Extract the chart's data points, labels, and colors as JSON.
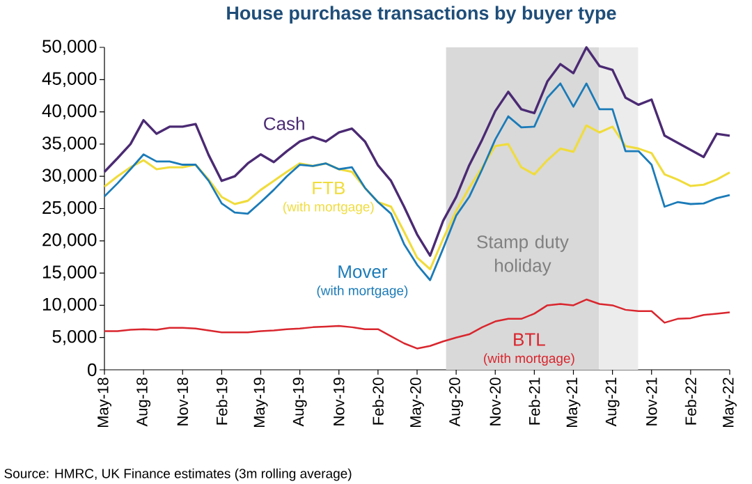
{
  "chart_data": {
    "type": "line",
    "title": "House purchase transactions by buyer type",
    "x": [
      "2018-05",
      "2018-06",
      "2018-07",
      "2018-08",
      "2018-09",
      "2018-10",
      "2018-11",
      "2018-12",
      "2019-01",
      "2019-02",
      "2019-03",
      "2019-04",
      "2019-05",
      "2019-06",
      "2019-07",
      "2019-08",
      "2019-09",
      "2019-10",
      "2019-11",
      "2019-12",
      "2020-01",
      "2020-02",
      "2020-03",
      "2020-04",
      "2020-05",
      "2020-06",
      "2020-07",
      "2020-08",
      "2020-09",
      "2020-10",
      "2020-11",
      "2020-12",
      "2021-01",
      "2021-02",
      "2021-03",
      "2021-04",
      "2021-05",
      "2021-06",
      "2021-07",
      "2021-08",
      "2021-09",
      "2021-10",
      "2021-11",
      "2021-12",
      "2022-01",
      "2022-02",
      "2022-03",
      "2022-04",
      "2022-05"
    ],
    "series": [
      {
        "name": "Cash",
        "color": "#4b2a73",
        "values": [
          30700,
          32800,
          35000,
          38700,
          36600,
          37700,
          37700,
          38100,
          33300,
          29300,
          30000,
          32000,
          33400,
          32200,
          33900,
          35400,
          36100,
          35400,
          36800,
          37400,
          35400,
          31700,
          29300,
          25300,
          21000,
          17700,
          23100,
          26800,
          31700,
          35700,
          40100,
          43100,
          40400,
          39800,
          44700,
          47400,
          46000,
          50000,
          47100,
          46500,
          42200,
          41100,
          41900,
          36300,
          35200,
          34100,
          33000,
          36600,
          36300
        ]
      },
      {
        "name": "FTB",
        "color": "#f0dc3c",
        "values": [
          28400,
          30000,
          31400,
          32500,
          31100,
          31400,
          31400,
          31800,
          29500,
          26800,
          25700,
          26200,
          27900,
          29300,
          30700,
          32000,
          31600,
          32000,
          31100,
          30700,
          28200,
          26000,
          25300,
          21400,
          17400,
          15600,
          20300,
          24600,
          28200,
          31400,
          34700,
          35000,
          31400,
          30300,
          32500,
          34300,
          33800,
          37900,
          36800,
          37700,
          34700,
          34300,
          33600,
          30300,
          29500,
          28500,
          28700,
          29500,
          30600
        ]
      },
      {
        "name": "Mover",
        "color": "#1b7bb8",
        "values": [
          26900,
          28900,
          31100,
          33400,
          32300,
          32300,
          31800,
          31800,
          29300,
          25800,
          24400,
          24200,
          26000,
          27900,
          30000,
          31800,
          31600,
          32000,
          31100,
          31400,
          28200,
          26000,
          24200,
          19500,
          16300,
          13900,
          18800,
          23900,
          26800,
          31100,
          35700,
          39300,
          37600,
          37700,
          42200,
          44400,
          40800,
          44400,
          40400,
          40400,
          33900,
          33900,
          31800,
          25300,
          26000,
          25700,
          25800,
          26600,
          27100
        ]
      },
      {
        "name": "BTL",
        "color": "#d9262e",
        "values": [
          6000,
          6000,
          6200,
          6300,
          6200,
          6500,
          6500,
          6400,
          6100,
          5800,
          5800,
          5800,
          6000,
          6100,
          6300,
          6400,
          6600,
          6700,
          6800,
          6600,
          6300,
          6300,
          5200,
          4100,
          3300,
          3700,
          4400,
          5000,
          5500,
          6600,
          7500,
          7900,
          7900,
          8700,
          10000,
          10200,
          10000,
          10900,
          10200,
          10000,
          9300,
          9100,
          9100,
          7300,
          7900,
          8000,
          8500,
          8700,
          8900
        ]
      }
    ],
    "xlim": [
      "2018-05",
      "2022-05"
    ],
    "xticks": [
      {
        "value": "2018-05",
        "label": "May-18"
      },
      {
        "value": "2018-08",
        "label": "Aug-18"
      },
      {
        "value": "2018-11",
        "label": "Nov-18"
      },
      {
        "value": "2019-02",
        "label": "Feb-19"
      },
      {
        "value": "2019-05",
        "label": "May-19"
      },
      {
        "value": "2019-08",
        "label": "Aug-19"
      },
      {
        "value": "2019-11",
        "label": "Nov-19"
      },
      {
        "value": "2020-02",
        "label": "Feb-20"
      },
      {
        "value": "2020-05",
        "label": "May-20"
      },
      {
        "value": "2020-08",
        "label": "Aug-20"
      },
      {
        "value": "2020-11",
        "label": "Nov-20"
      },
      {
        "value": "2021-02",
        "label": "Feb-21"
      },
      {
        "value": "2021-05",
        "label": "May-21"
      },
      {
        "value": "2021-08",
        "label": "Aug-21"
      },
      {
        "value": "2021-11",
        "label": "Nov-21"
      },
      {
        "value": "2022-02",
        "label": "Feb-22"
      },
      {
        "value": "2022-05",
        "label": "May-22"
      }
    ],
    "ylim": [
      0,
      50000
    ],
    "yticks": [
      {
        "value": 0,
        "label": "0"
      },
      {
        "value": 5000,
        "label": "5,000"
      },
      {
        "value": 10000,
        "label": "10,000"
      },
      {
        "value": 15000,
        "label": "15,000"
      },
      {
        "value": 20000,
        "label": "20,000"
      },
      {
        "value": 25000,
        "label": "25,000"
      },
      {
        "value": 30000,
        "label": "30,000"
      },
      {
        "value": 35000,
        "label": "35,000"
      },
      {
        "value": 40000,
        "label": "40,000"
      },
      {
        "value": 45000,
        "label": "45,000"
      },
      {
        "value": 50000,
        "label": "50,000"
      }
    ],
    "bands": [
      {
        "axis": "x",
        "from": "2020-07-08",
        "to": "2021-06-30",
        "label": "Stamp duty holiday",
        "color": "#d9d9d9"
      },
      {
        "axis": "x",
        "from": "2021-06-30",
        "to": "2021-09-30",
        "color": "#ececec"
      }
    ],
    "annotations": [
      "(with mortgage)",
      "(with mortgage)",
      "(with mortgage)",
      "Source: HMRC, UK Finance estimates (3m rolling average)"
    ],
    "grid": false
  }
}
